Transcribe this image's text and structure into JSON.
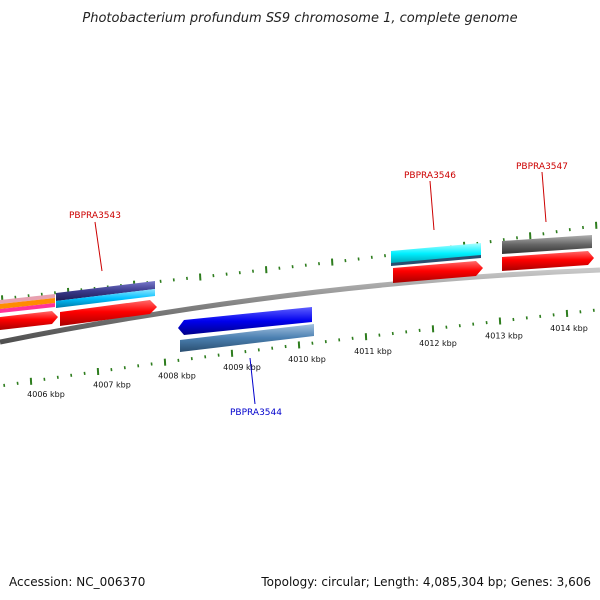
{
  "title": "Photobacterium profundum SS9 chromosome 1, complete genome",
  "footer": {
    "accession": "Accession: NC_006370",
    "topology": "Topology: circular; Length: 4,085,304 bp; Genes: 3,606"
  },
  "scale": {
    "tick_labels": [
      "4006 kbp",
      "4007 kbp",
      "4008 kbp",
      "4009 kbp",
      "4010 kbp",
      "4011 kbp",
      "4012 kbp",
      "4013 kbp",
      "4014 kbp"
    ]
  },
  "genes": [
    {
      "id": "PBPRA3543",
      "label": "PBPRA3543",
      "label_color": "#cc0000",
      "strand": "forward",
      "color": "#3a3a8c",
      "cog_color": "#00c0ff"
    },
    {
      "id": "PBPRA3544",
      "label": "PBPRA3544",
      "label_color": "#0000cc",
      "strand": "reverse",
      "color": "#0000ee",
      "cog_color": "#4a7fb0"
    },
    {
      "id": "PBPRA3546",
      "label": "PBPRA3546",
      "label_color": "#cc0000",
      "strand": "forward",
      "color": "#00f0ff",
      "cog_color": "#ff0000"
    },
    {
      "id": "PBPRA3547",
      "label": "PBPRA3547",
      "label_color": "#cc0000",
      "strand": "forward",
      "color": "#666666",
      "cog_color": "#ff0000"
    }
  ],
  "colors": {
    "backbone": "#808080",
    "tick_green": "#2e7d1e",
    "cds_red": "#ff0000",
    "left_partial_top": "#e0708a",
    "left_partial_mid": "#ff8c00",
    "left_partial_pink": "#ff3399"
  }
}
